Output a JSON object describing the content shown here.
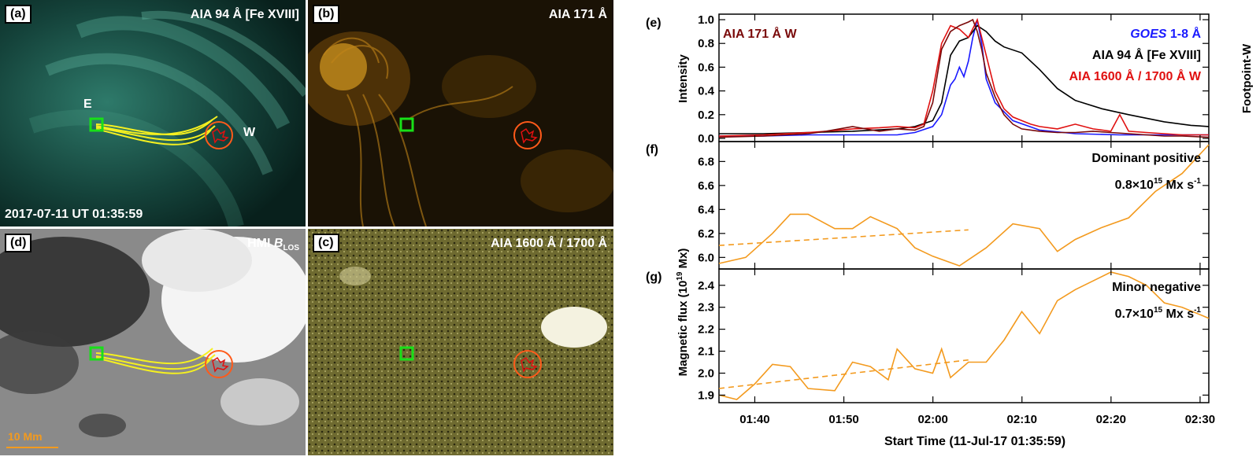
{
  "panels": {
    "a": {
      "label": "(a)",
      "title": "AIA 94 Å [Fe XVIII]",
      "timestamp": "2017-07-11 UT 01:35:59",
      "east": "E",
      "west": "W"
    },
    "b": {
      "label": "(b)",
      "title": "AIA 171 Å"
    },
    "d": {
      "label": "(d)",
      "title_prefix": "HMI ",
      "title_var": "B",
      "title_sub": "LOS",
      "scale": "10 Mm"
    },
    "c": {
      "label": "(c)",
      "title": "AIA 1600 Å / 1700 Å"
    }
  },
  "plots": {
    "e": {
      "label": "(e)",
      "ylabel": "Intensity",
      "right_label": "Footpoint-W",
      "leg_171": "AIA 171 Å W",
      "leg_goes_a": "GOES",
      "leg_goes_b": " 1-8 Å",
      "leg_94": "AIA 94 Å [Fe XVIII]",
      "leg_1600": "AIA 1600 Å / 1700 Å W",
      "yticks": [
        "0.0",
        "0.2",
        "0.4",
        "0.6",
        "0.8",
        "1.0"
      ]
    },
    "f": {
      "label": "(f)",
      "anno1": "Dominant positive",
      "anno2_pre": "0.8×10",
      "anno2_exp": "15",
      "anno2_post": " Mx s",
      "anno2_exp2": "-1",
      "yticks": [
        "6.0",
        "6.2",
        "6.4",
        "6.6",
        "6.8"
      ]
    },
    "g": {
      "label": "(g)",
      "anno1": "Minor negative",
      "anno2_pre": "0.7×10",
      "anno2_exp": "15",
      "anno2_post": " Mx s",
      "anno2_exp2": "-1",
      "yticks": [
        "1.9",
        "2.0",
        "2.1",
        "2.2",
        "2.3",
        "2.4"
      ]
    },
    "ylabel_fg_pre": "Magnetic flux (10",
    "ylabel_fg_exp": "19",
    "ylabel_fg_post": " Mx)",
    "xticks": [
      "01:40",
      "01:50",
      "02:00",
      "02:10",
      "02:20",
      "02:30"
    ],
    "xlabel": "Start Time (11-Jul-17 01:35:59)"
  },
  "chart_data": [
    {
      "type": "line",
      "panel": "e",
      "xlim": [
        0,
        55
      ],
      "ylim": [
        0,
        1.02
      ],
      "x_unit": "minutes after 01:35:59",
      "series": [
        {
          "name": "GOES 1-8 Å",
          "color": "#1a1aff",
          "x": [
            0,
            5,
            10,
            15,
            20,
            22,
            24,
            25,
            26,
            26.5,
            27,
            27.5,
            28,
            28.5,
            29,
            29.5,
            30,
            31,
            33,
            36,
            40,
            45,
            50,
            55
          ],
          "y": [
            0.02,
            0.02,
            0.03,
            0.03,
            0.03,
            0.05,
            0.1,
            0.2,
            0.45,
            0.5,
            0.6,
            0.52,
            0.65,
            0.85,
            1.0,
            0.8,
            0.5,
            0.3,
            0.15,
            0.07,
            0.04,
            0.03,
            0.03,
            0.03
          ]
        },
        {
          "name": "AIA 94 Å [Fe XVIII]",
          "color": "#000000",
          "x": [
            0,
            5,
            10,
            15,
            20,
            22,
            24,
            25,
            26,
            27,
            28,
            29,
            30,
            31,
            32,
            34,
            36,
            38,
            40,
            43,
            46,
            50,
            53,
            55
          ],
          "y": [
            0.04,
            0.04,
            0.05,
            0.06,
            0.08,
            0.1,
            0.15,
            0.3,
            0.7,
            0.82,
            0.85,
            0.95,
            0.9,
            0.82,
            0.77,
            0.72,
            0.58,
            0.42,
            0.32,
            0.25,
            0.2,
            0.14,
            0.11,
            0.1
          ]
        },
        {
          "name": "AIA 1600 Å / 1700 Å W",
          "color": "#e01010",
          "x": [
            0,
            5,
            10,
            12,
            15,
            18,
            20,
            22,
            23,
            24,
            25,
            26,
            27,
            28,
            29,
            30,
            31,
            32,
            33,
            34,
            35,
            36,
            38,
            40,
            42,
            44,
            45,
            46,
            48,
            50,
            52,
            55
          ],
          "y": [
            0.02,
            0.03,
            0.05,
            0.06,
            0.08,
            0.09,
            0.1,
            0.09,
            0.12,
            0.4,
            0.8,
            0.95,
            0.92,
            0.85,
            1.0,
            0.7,
            0.4,
            0.25,
            0.18,
            0.15,
            0.12,
            0.1,
            0.08,
            0.12,
            0.08,
            0.06,
            0.2,
            0.06,
            0.05,
            0.04,
            0.03,
            0.03
          ]
        },
        {
          "name": "AIA 171 Å W",
          "color": "#7a0a0a",
          "x": [
            0,
            5,
            10,
            12,
            15,
            18,
            20,
            22,
            23,
            24,
            25,
            26,
            27,
            28,
            28.5,
            29,
            29.5,
            30,
            31,
            32,
            33,
            34,
            36,
            38,
            40,
            42,
            44,
            46,
            48,
            50,
            52,
            55
          ],
          "y": [
            0.01,
            0.02,
            0.04,
            0.06,
            0.1,
            0.06,
            0.08,
            0.07,
            0.1,
            0.3,
            0.75,
            0.9,
            0.95,
            0.98,
            1.0,
            0.9,
            0.75,
            0.55,
            0.35,
            0.2,
            0.12,
            0.08,
            0.06,
            0.05,
            0.05,
            0.06,
            0.05,
            0.04,
            0.03,
            0.02,
            0.02,
            0.01
          ]
        }
      ]
    },
    {
      "type": "line",
      "panel": "f",
      "xlim": [
        0,
        55
      ],
      "ylim": [
        5.93,
        6.94
      ],
      "ylabel": "Magnetic flux (10^19 Mx)",
      "series": [
        {
          "name": "Dominant positive",
          "color": "#f39a1e",
          "x": [
            0,
            3,
            6,
            8,
            10,
            13,
            15,
            17,
            20,
            22,
            24,
            27,
            30,
            33,
            36,
            38,
            40,
            43,
            46,
            49,
            52,
            55
          ],
          "y": [
            5.95,
            6.0,
            6.2,
            6.36,
            6.36,
            6.24,
            6.24,
            6.34,
            6.24,
            6.08,
            6.01,
            5.93,
            6.08,
            6.28,
            6.24,
            6.05,
            6.15,
            6.25,
            6.33,
            6.55,
            6.7,
            6.94
          ]
        },
        {
          "name": "trend",
          "color": "#f39a1e",
          "dashed": true,
          "x": [
            0,
            28
          ],
          "y": [
            6.1,
            6.23
          ]
        }
      ]
    },
    {
      "type": "line",
      "panel": "g",
      "xlim": [
        0,
        55
      ],
      "ylim": [
        1.88,
        2.46
      ],
      "series": [
        {
          "name": "Minor negative",
          "color": "#f39a1e",
          "x": [
            0,
            2,
            4,
            6,
            8,
            10,
            13,
            15,
            17,
            19,
            20,
            22,
            24,
            25,
            26,
            28,
            30,
            32,
            34,
            36,
            38,
            40,
            42,
            44,
            46,
            48,
            50,
            52,
            55
          ],
          "y": [
            1.9,
            1.88,
            1.95,
            2.04,
            2.03,
            1.93,
            1.92,
            2.05,
            2.03,
            1.97,
            2.11,
            2.02,
            2.0,
            2.11,
            1.98,
            2.05,
            2.05,
            2.15,
            2.28,
            2.18,
            2.33,
            2.38,
            2.42,
            2.46,
            2.44,
            2.4,
            2.32,
            2.3,
            2.25
          ]
        },
        {
          "name": "trend",
          "color": "#f39a1e",
          "dashed": true,
          "x": [
            0,
            28
          ],
          "y": [
            1.93,
            2.06
          ]
        }
      ]
    }
  ]
}
